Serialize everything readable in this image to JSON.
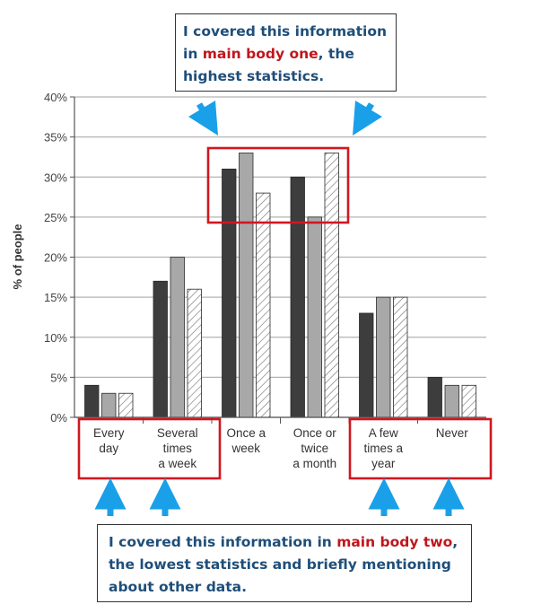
{
  "chart_data": {
    "type": "bar",
    "ylabel": "% of people",
    "ylim": [
      0,
      40
    ],
    "yticks": [
      "0%",
      "5%",
      "10%",
      "15%",
      "20%",
      "25%",
      "30%",
      "35%",
      "40%"
    ],
    "grid": true,
    "categories": [
      [
        "Every",
        "day"
      ],
      [
        "Several",
        "times",
        "a week"
      ],
      [
        "Once a",
        "week"
      ],
      [
        "Once or",
        "twice",
        "a month"
      ],
      [
        "A few",
        "times a",
        "year"
      ],
      [
        "Never"
      ]
    ],
    "series": [
      {
        "fill": "dark",
        "values": [
          4,
          17,
          31,
          30,
          13,
          5
        ]
      },
      {
        "fill": "grey",
        "values": [
          3,
          20,
          33,
          25,
          15,
          4
        ]
      },
      {
        "fill": "hatched",
        "values": [
          3,
          16,
          28,
          33,
          15,
          4
        ]
      }
    ]
  },
  "annotations": {
    "top_note": {
      "before": "I covered this information in ",
      "highlight": "main body one",
      "after": ", the highest statistics."
    },
    "bottom_note": {
      "before": "I covered this information in ",
      "highlight": "main body two",
      "after": ", the lowest statistics and briefly mentioning about other data."
    }
  },
  "colors": {
    "series_dark": "#3d3d3d",
    "series_grey": "#a8a8a8",
    "hatch_line": "#777777",
    "highlight_box": "#d0171f",
    "arrow": "#1aa0e8",
    "note_text": "#1f4e79",
    "note_highlight": "#c0161c"
  }
}
